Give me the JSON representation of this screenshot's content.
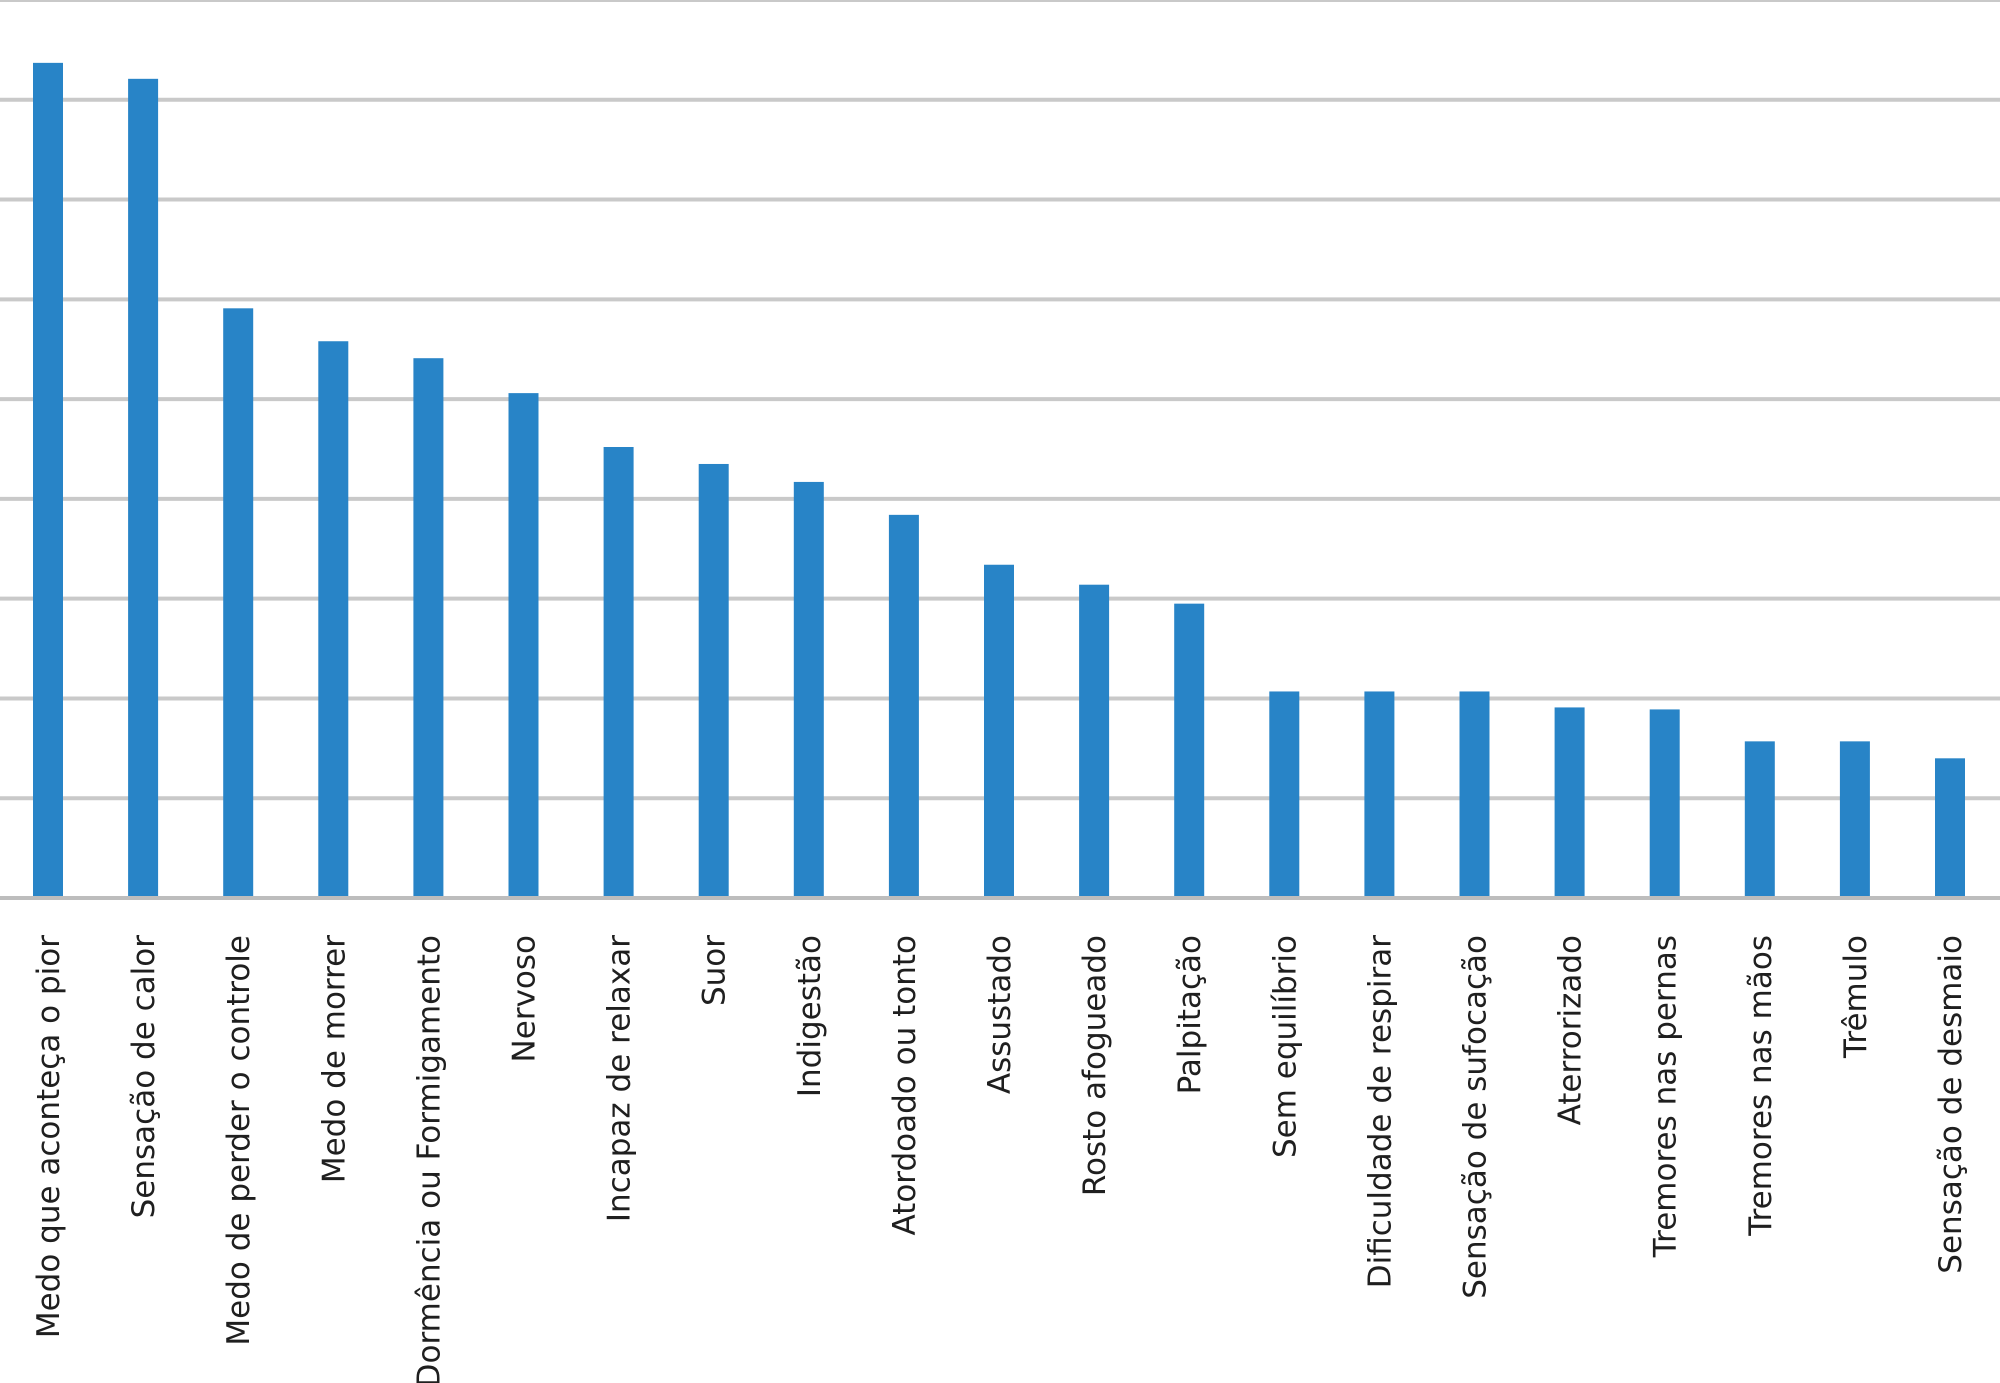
{
  "chart_data": {
    "type": "bar",
    "title": "",
    "xlabel": "",
    "ylabel": "",
    "grid": true,
    "legend": "none",
    "ylim": [
      0,
      9
    ],
    "colors": {
      "bar": "#2884c7",
      "grid": "#c9c9c9",
      "axis": "#bdbdbd",
      "label": "#1f1f1f"
    },
    "categories": [
      "Medo que aconteça o pior",
      "Sensação de calor",
      "Medo de perder o controle",
      "Medo de morrer",
      "Dormência ou Formigamento",
      "Nervoso",
      "Incapaz de relaxar",
      "Suor",
      "Indigestão",
      "Atordoado ou tonto",
      "Assustado",
      "Rosto afogueado",
      "Palpitação",
      "Sem equilíbrio",
      "Dificuldade de respirar",
      "Sensação de sufocação",
      "Aterrorizado",
      "Tremores nas pernas",
      "Tremores nas mãos",
      "Trêmulo",
      "Sensação de desmaio"
    ],
    "values": [
      8.37,
      8.21,
      5.91,
      5.58,
      5.41,
      5.06,
      4.52,
      4.35,
      4.17,
      3.84,
      3.34,
      3.14,
      2.95,
      2.07,
      2.07,
      2.07,
      1.91,
      1.89,
      1.57,
      1.57,
      1.4
    ]
  }
}
